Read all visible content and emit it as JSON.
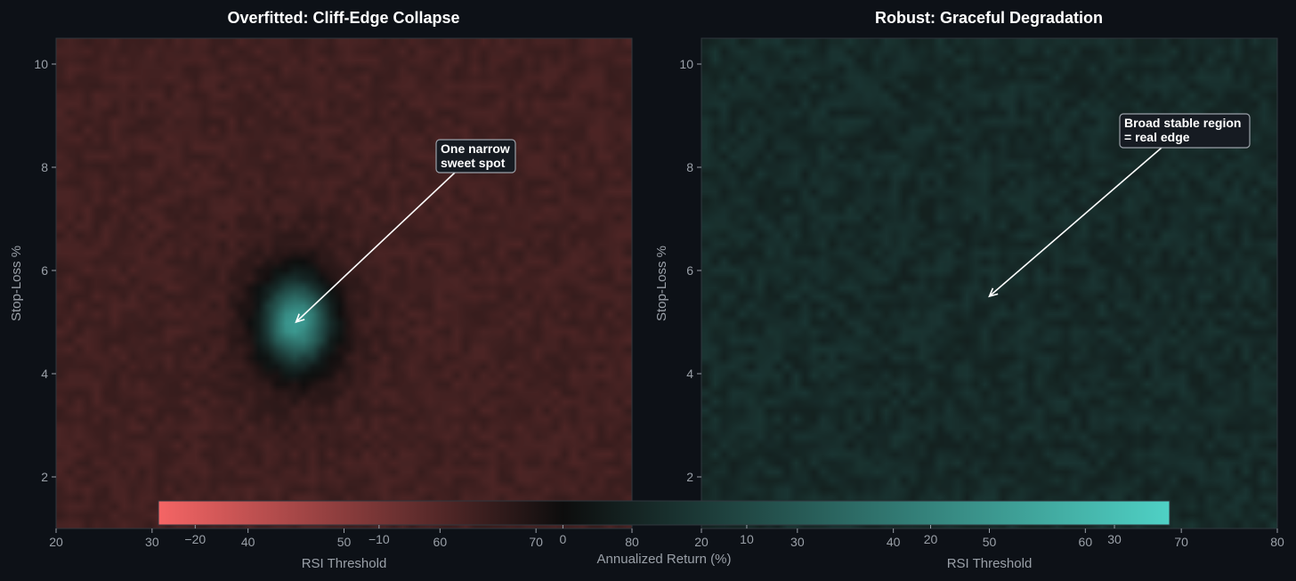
{
  "chart_data": [
    {
      "type": "heatmap",
      "title": "Overfitted: Cliff-Edge Collapse",
      "xlabel": "RSI Threshold",
      "ylabel": "Stop-Loss %",
      "xlim": [
        20,
        80
      ],
      "ylim": [
        1,
        10.5
      ],
      "xticks": [
        20,
        30,
        40,
        50,
        60,
        70,
        80
      ],
      "yticks": [
        2,
        4,
        6,
        8,
        10
      ],
      "surface": {
        "baseline_return": -5,
        "peak": {
          "x": 45,
          "y": 5,
          "return": 25
        },
        "moat_return": -1
      },
      "annotation": {
        "text": [
          "One narrow",
          "sweet spot"
        ],
        "arrow_target": {
          "x": 45,
          "y": 5
        }
      }
    },
    {
      "type": "heatmap",
      "title": "Robust: Graceful Degradation",
      "xlabel": "RSI Threshold",
      "ylabel": "Stop-Loss %",
      "xlim": [
        20,
        80
      ],
      "ylim": [
        1,
        10.5
      ],
      "xticks": [
        20,
        30,
        40,
        50,
        60,
        70,
        80
      ],
      "yticks": [
        2,
        4,
        6,
        8,
        10
      ],
      "surface": {
        "baseline_return": 5
      },
      "annotation": {
        "text": [
          "Broad stable region",
          "= real edge"
        ],
        "arrow_target": {
          "x": 50,
          "y": 5.5
        }
      }
    }
  ],
  "colorbar": {
    "label": "Annualized Return (%)",
    "min": -22,
    "max": 33,
    "ticks": [
      "−20",
      "−10",
      "0",
      "10",
      "20",
      "30"
    ],
    "colors": {
      "negative": "#f56565",
      "zero": "#0d0d0d",
      "positive": "#4fd1c5"
    }
  }
}
